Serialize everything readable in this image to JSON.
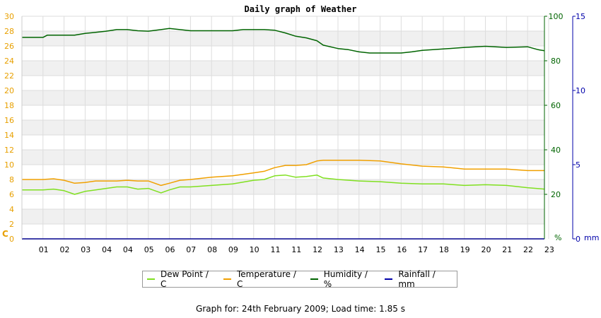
{
  "chart_data": {
    "type": "line",
    "title": "Daily graph of Weather",
    "x_tick_labels": [
      "01",
      "02",
      "03",
      "04",
      "04",
      "05",
      "06",
      "07",
      "08",
      "09",
      "10",
      "11",
      "11",
      "12",
      "13",
      "14",
      "15",
      "16",
      "17",
      "18",
      "19",
      "20",
      "21",
      "22",
      "23"
    ],
    "left_axis": {
      "unit_label": "C",
      "ticks": [
        0,
        2,
        4,
        6,
        8,
        10,
        12,
        14,
        16,
        18,
        20,
        22,
        24,
        26,
        28,
        30
      ],
      "range": [
        0,
        30
      ],
      "color": "#e8a000"
    },
    "humidity_axis": {
      "unit_label": "%",
      "ticks": [
        20,
        40,
        60,
        80,
        100
      ],
      "range": [
        0,
        100
      ],
      "color": "#006400"
    },
    "rain_axis": {
      "unit_label": "mm",
      "ticks": [
        0,
        5,
        10,
        15
      ],
      "range": [
        0,
        15
      ],
      "color": "#0000aa"
    },
    "grid": true,
    "legend_position": "bottom",
    "series": [
      {
        "name": "Dew Point / C",
        "color": "#80e020",
        "axis": "left",
        "points": [
          [
            0,
            6.6
          ],
          [
            1,
            6.6
          ],
          [
            1.5,
            6.7
          ],
          [
            2,
            6.5
          ],
          [
            2.5,
            6.0
          ],
          [
            3,
            6.4
          ],
          [
            3.5,
            6.6
          ],
          [
            4,
            6.8
          ],
          [
            4.5,
            7.0
          ],
          [
            5,
            7.0
          ],
          [
            5.5,
            6.7
          ],
          [
            6,
            6.8
          ],
          [
            6.6,
            6.2
          ],
          [
            7,
            6.6
          ],
          [
            7.5,
            7.0
          ],
          [
            8,
            7.0
          ],
          [
            9,
            7.2
          ],
          [
            10,
            7.4
          ],
          [
            11,
            7.9
          ],
          [
            11.5,
            8.0
          ],
          [
            12,
            8.5
          ],
          [
            12.5,
            8.6
          ],
          [
            13,
            8.3
          ],
          [
            13.5,
            8.4
          ],
          [
            14,
            8.6
          ],
          [
            14.3,
            8.2
          ],
          [
            15,
            8.0
          ],
          [
            16,
            7.8
          ],
          [
            17,
            7.7
          ],
          [
            18,
            7.5
          ],
          [
            19,
            7.4
          ],
          [
            20,
            7.4
          ],
          [
            21,
            7.2
          ],
          [
            22,
            7.3
          ],
          [
            23,
            7.2
          ],
          [
            24,
            6.9
          ],
          [
            24.8,
            6.7
          ]
        ]
      },
      {
        "name": "Temperature / C",
        "color": "#f0a000",
        "axis": "left",
        "points": [
          [
            0,
            8.0
          ],
          [
            1,
            8.0
          ],
          [
            1.5,
            8.1
          ],
          [
            2,
            7.9
          ],
          [
            2.5,
            7.5
          ],
          [
            3,
            7.6
          ],
          [
            3.5,
            7.8
          ],
          [
            4,
            7.8
          ],
          [
            4.5,
            7.8
          ],
          [
            5,
            7.9
          ],
          [
            5.5,
            7.8
          ],
          [
            6,
            7.8
          ],
          [
            6.6,
            7.2
          ],
          [
            7,
            7.5
          ],
          [
            7.5,
            7.9
          ],
          [
            8,
            8.0
          ],
          [
            9,
            8.3
          ],
          [
            10,
            8.5
          ],
          [
            11,
            8.9
          ],
          [
            11.5,
            9.1
          ],
          [
            12,
            9.6
          ],
          [
            12.5,
            9.9
          ],
          [
            13,
            9.9
          ],
          [
            13.5,
            10.0
          ],
          [
            14,
            10.5
          ],
          [
            14.3,
            10.6
          ],
          [
            15,
            10.6
          ],
          [
            16,
            10.6
          ],
          [
            17,
            10.5
          ],
          [
            18,
            10.1
          ],
          [
            19,
            9.8
          ],
          [
            20,
            9.7
          ],
          [
            21,
            9.4
          ],
          [
            22,
            9.4
          ],
          [
            23,
            9.4
          ],
          [
            24,
            9.2
          ],
          [
            24.8,
            9.2
          ]
        ]
      },
      {
        "name": "Humidity / %",
        "color": "#006400",
        "axis": "humidity",
        "points": [
          [
            0,
            90.5
          ],
          [
            1,
            90.5
          ],
          [
            1.2,
            91.5
          ],
          [
            2,
            91.5
          ],
          [
            2.5,
            91.5
          ],
          [
            3,
            92.3
          ],
          [
            3.5,
            92.8
          ],
          [
            4,
            93.3
          ],
          [
            4.5,
            94
          ],
          [
            5,
            94
          ],
          [
            5.5,
            93.5
          ],
          [
            6,
            93.3
          ],
          [
            6.6,
            94
          ],
          [
            7,
            94.5
          ],
          [
            7.5,
            94
          ],
          [
            8,
            93.5
          ],
          [
            9,
            93.5
          ],
          [
            10,
            93.5
          ],
          [
            10.5,
            94
          ],
          [
            11.5,
            94
          ],
          [
            12,
            93.7
          ],
          [
            12.5,
            92.5
          ],
          [
            13,
            91
          ],
          [
            13.5,
            90.3
          ],
          [
            14,
            89
          ],
          [
            14.3,
            87
          ],
          [
            15,
            85.5
          ],
          [
            15.5,
            85
          ],
          [
            16,
            84
          ],
          [
            16.5,
            83.5
          ],
          [
            17,
            83.5
          ],
          [
            18,
            83.5
          ],
          [
            18.5,
            84
          ],
          [
            19,
            84.7
          ],
          [
            20,
            85.3
          ],
          [
            21,
            86
          ],
          [
            22,
            86.5
          ],
          [
            23,
            86
          ],
          [
            24,
            86.3
          ],
          [
            24.5,
            85
          ],
          [
            24.8,
            84.5
          ]
        ]
      },
      {
        "name": "Rainfall / mm",
        "color": "#0000aa",
        "axis": "rain",
        "points": [
          [
            0,
            0
          ],
          [
            24.8,
            0
          ]
        ]
      }
    ]
  },
  "footer": {
    "prefix": "Graph for: ",
    "date": "24th February 2009",
    "sep": "; Load time: ",
    "load_time": "1.85 s"
  }
}
